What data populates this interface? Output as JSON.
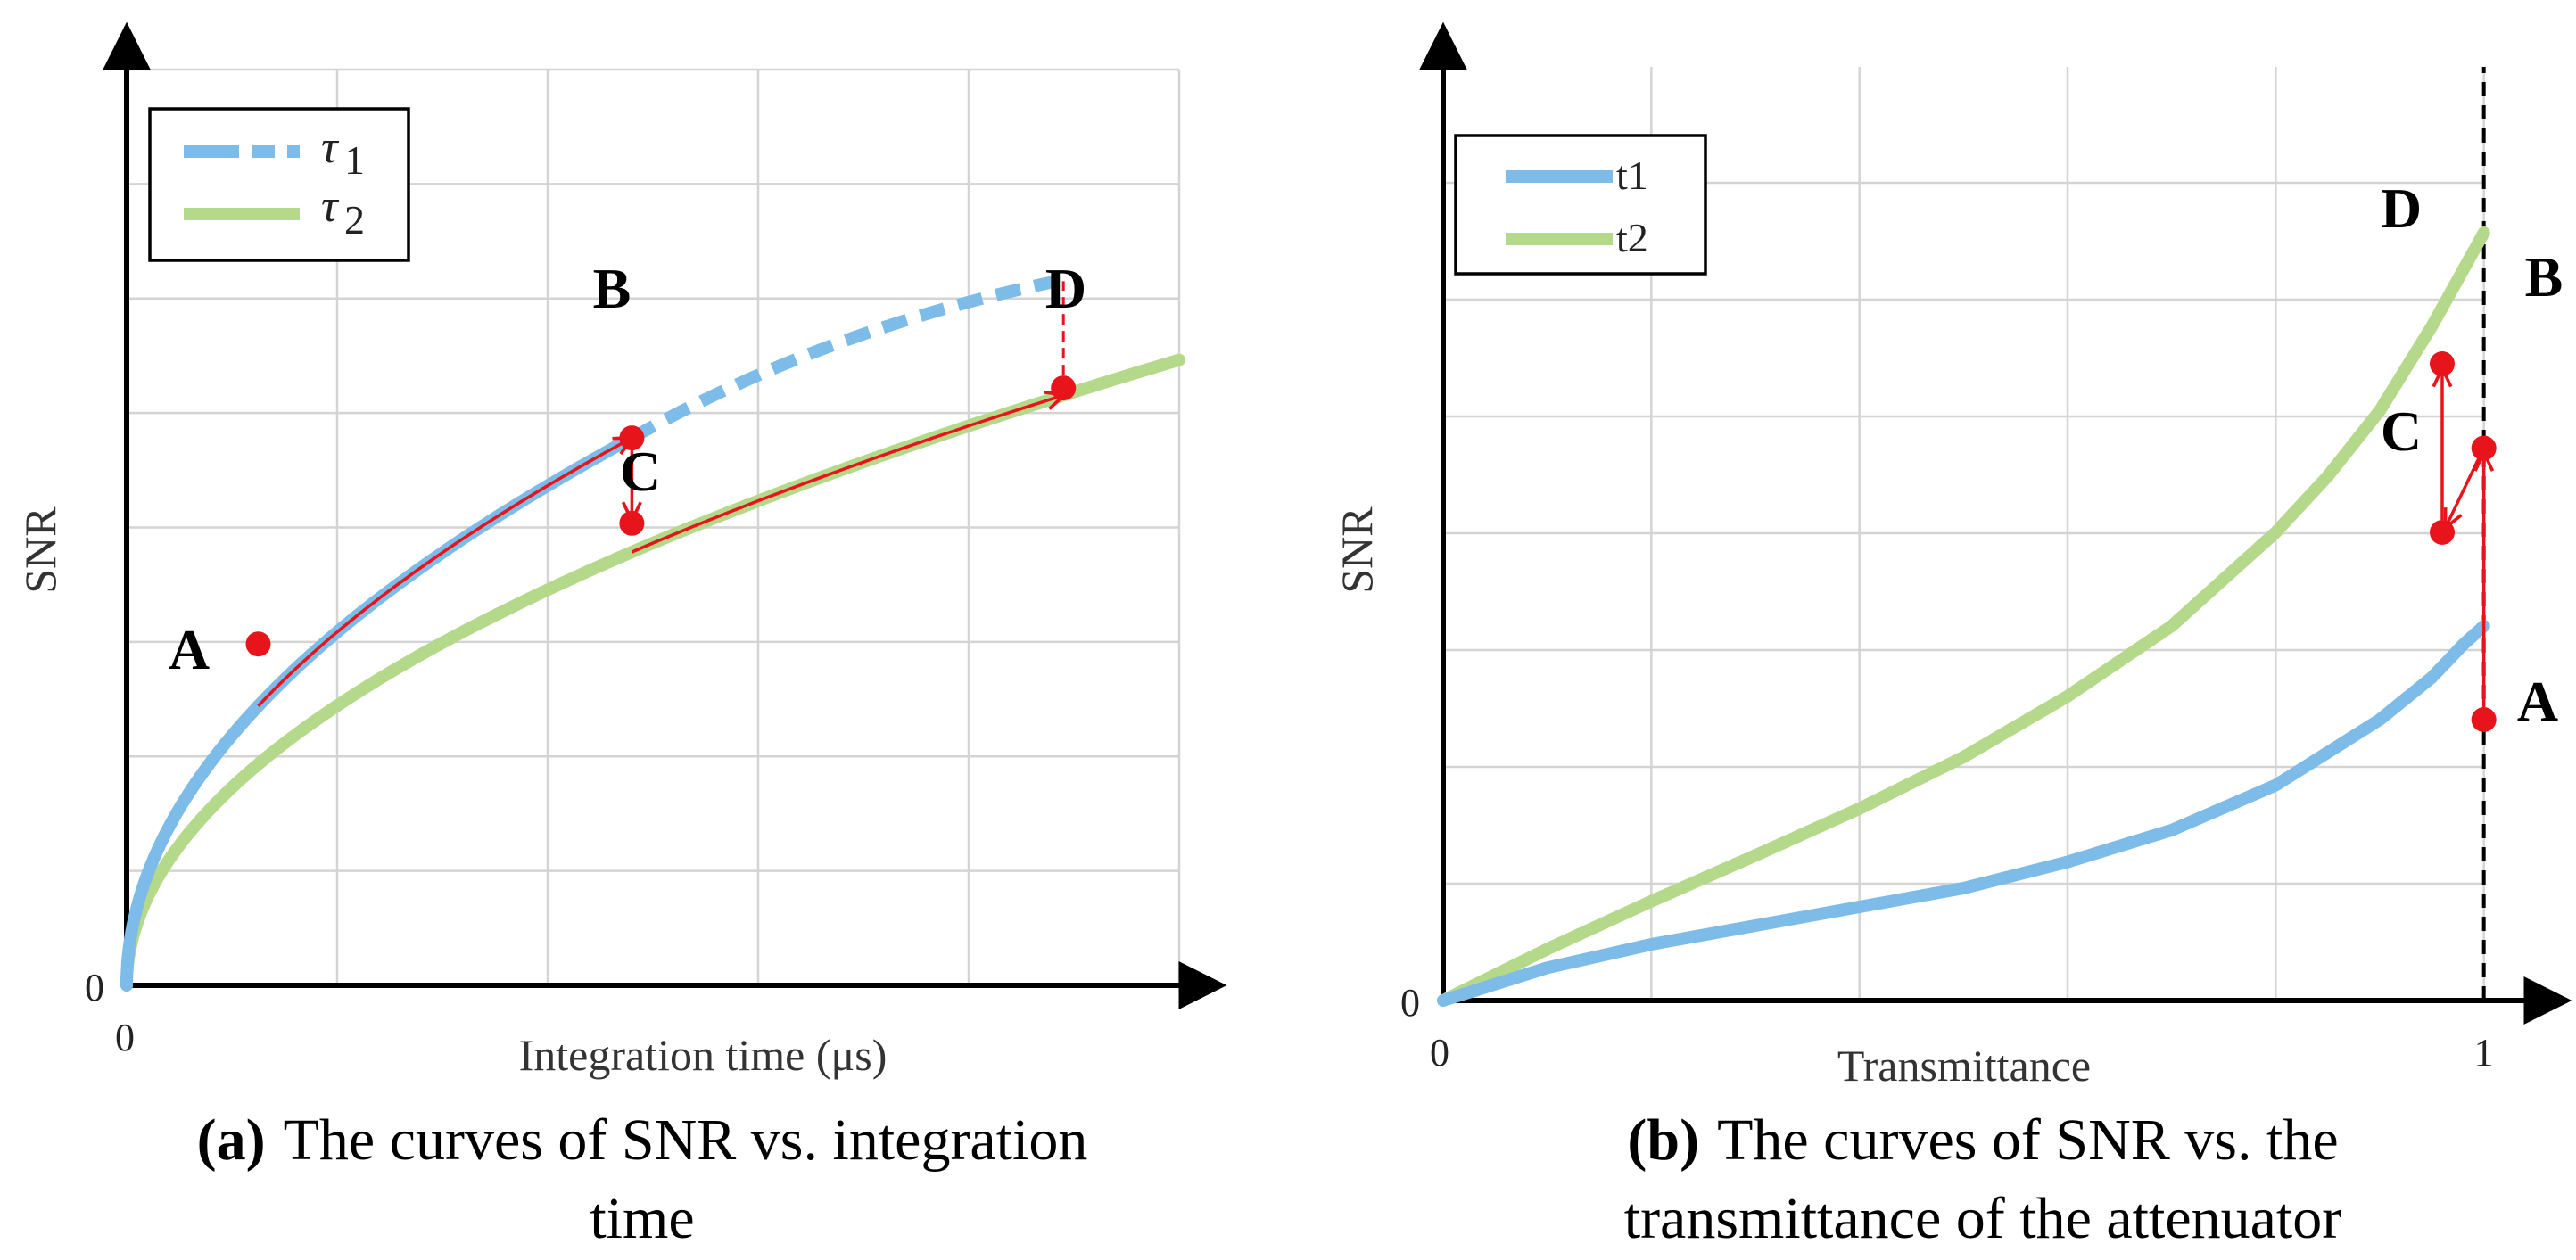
{
  "chart_data": [
    {
      "type": "line",
      "panel": "a",
      "xlabel": "Integration time (μs)",
      "ylabel": "SNR",
      "x_tick_labels": [
        "0"
      ],
      "y_tick_labels": [
        "0"
      ],
      "xlim": [
        0,
        10
      ],
      "ylim": [
        0,
        8.8
      ],
      "grid": true,
      "legend": {
        "position": "top-left",
        "entries": [
          {
            "symbol": "τ",
            "subscript": "1",
            "color": "#7dbbe8",
            "style": "dash-dot"
          },
          {
            "symbol": "τ",
            "subscript": "2",
            "color": "#b5d98a",
            "style": "solid"
          }
        ]
      },
      "series": [
        {
          "name": "τ1",
          "color": "#7dbbe8",
          "solid_until_x": 4.8,
          "dashed_until_x": 9.0,
          "x": [
            0,
            0.05,
            0.2,
            0.5,
            1,
            1.5,
            2,
            2.5,
            3,
            3.5,
            4,
            4.5,
            4.8
          ],
          "y": [
            0,
            0.89,
            1.34,
            1.89,
            2.53,
            3.03,
            3.46,
            3.85,
            4.2,
            4.52,
            4.82,
            5.1,
            5.26
          ]
        },
        {
          "name": "τ2",
          "color": "#b5d98a",
          "x": [
            0,
            0.05,
            0.2,
            0.5,
            1,
            1.5,
            2,
            2.5,
            3,
            4,
            5,
            6,
            7,
            8,
            9,
            10
          ],
          "y": [
            0,
            0.71,
            1.07,
            1.51,
            2.02,
            2.41,
            2.76,
            3.06,
            3.34,
            3.84,
            4.27,
            4.67,
            5.04,
            5.38,
            5.7,
            6.01
          ]
        }
      ],
      "points": [
        {
          "label": "A",
          "x": 1.25,
          "y": 3.28
        },
        {
          "label": "B",
          "x": 4.8,
          "y": 5.26
        },
        {
          "label": "C",
          "x": 4.8,
          "y": 4.44
        },
        {
          "label": "D",
          "x": 8.9,
          "y": 5.74
        }
      ],
      "tau1_dashed_end": {
        "x": 9.0,
        "y": 6.8
      },
      "caption_bold": "(a)",
      "caption_lines": [
        "The curves of SNR vs. integration",
        "time"
      ]
    },
    {
      "type": "line",
      "panel": "b",
      "xlabel": "Transmittance",
      "ylabel": "SNR",
      "x_tick_labels": [
        "0",
        "1"
      ],
      "y_tick_labels": [
        "0"
      ],
      "xlim": [
        0,
        1.08
      ],
      "ylim": [
        0,
        10.4
      ],
      "grid": true,
      "vertical_reference": {
        "x": 1,
        "style": "dashed"
      },
      "legend": {
        "position": "top-left",
        "entries": [
          {
            "label": "t1",
            "color": "#7dbbe8",
            "style": "solid"
          },
          {
            "label": "t2",
            "color": "#b5d98a",
            "style": "solid"
          }
        ]
      },
      "series": [
        {
          "name": "t1",
          "color": "#7dbbe8",
          "x": [
            0,
            0.1,
            0.2,
            0.3,
            0.4,
            0.5,
            0.6,
            0.7,
            0.8,
            0.85,
            0.9,
            0.95,
            0.98,
            1.0
          ],
          "y": [
            0,
            0.35,
            0.6,
            0.8,
            1.0,
            1.2,
            1.48,
            1.82,
            2.3,
            2.65,
            3.0,
            3.45,
            3.8,
            4.0
          ]
        },
        {
          "name": "t2",
          "color": "#b5d98a",
          "x": [
            0,
            0.1,
            0.2,
            0.3,
            0.4,
            0.5,
            0.6,
            0.7,
            0.8,
            0.85,
            0.9,
            0.95,
            0.98,
            1.0
          ],
          "y": [
            0,
            0.55,
            1.06,
            1.55,
            2.05,
            2.6,
            3.25,
            4.0,
            5.0,
            5.6,
            6.3,
            7.2,
            7.8,
            8.2
          ]
        }
      ],
      "points": [
        {
          "label": "A",
          "x": 1.0,
          "y": 3.0
        },
        {
          "label": "B",
          "x": 1.0,
          "y": 5.9
        },
        {
          "label": "C",
          "x": 0.96,
          "y": 5.0
        },
        {
          "label": "D",
          "x": 0.96,
          "y": 6.8
        }
      ],
      "caption_bold": "(b)",
      "caption_lines": [
        "The curves of SNR vs. the",
        "transmittance of the attenuator"
      ]
    }
  ]
}
